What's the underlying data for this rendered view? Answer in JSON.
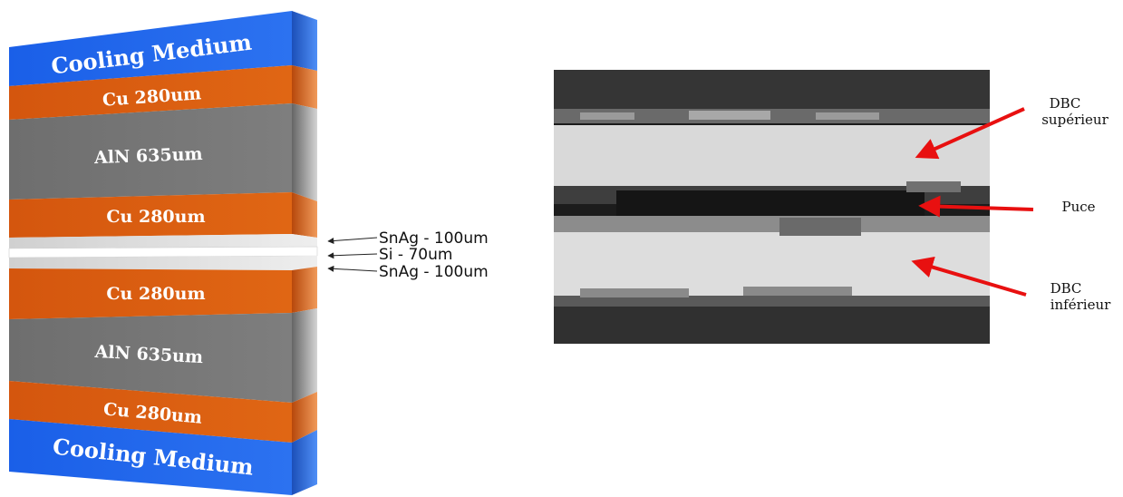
{
  "stack": {
    "layers": [
      {
        "label": "Cooling Medium",
        "type": "cooling"
      },
      {
        "label": "Cu  280um",
        "type": "copper"
      },
      {
        "label": "AlN  635um",
        "type": "ceramic"
      },
      {
        "label": "Cu  280um",
        "type": "copper"
      },
      {
        "label": "",
        "type": "solder"
      },
      {
        "label": "",
        "type": "silicon"
      },
      {
        "label": "",
        "type": "solder"
      },
      {
        "label": "Cu  280um",
        "type": "copper"
      },
      {
        "label": "AlN  635um",
        "type": "ceramic"
      },
      {
        "label": "Cu  280um",
        "type": "copper"
      },
      {
        "label": "Cooling Medium",
        "type": "cooling"
      }
    ],
    "callouts": [
      "SnAg - 100um",
      "Si - 70um",
      "SnAg - 100um"
    ]
  },
  "micrograph": {
    "labels": {
      "dbc_top_1": "DBC",
      "dbc_top_2": "supérieur",
      "chip": "Puce",
      "dbc_bottom_1": "DBC",
      "dbc_bottom_2": "inférieur"
    }
  },
  "colors": {
    "cooling": "#1560e0",
    "copper": "#d9590f",
    "ceramic": "#7a7a7a",
    "solder": "#d8d8d8",
    "silicon": "#ffffff",
    "arrow": "#e81010"
  }
}
